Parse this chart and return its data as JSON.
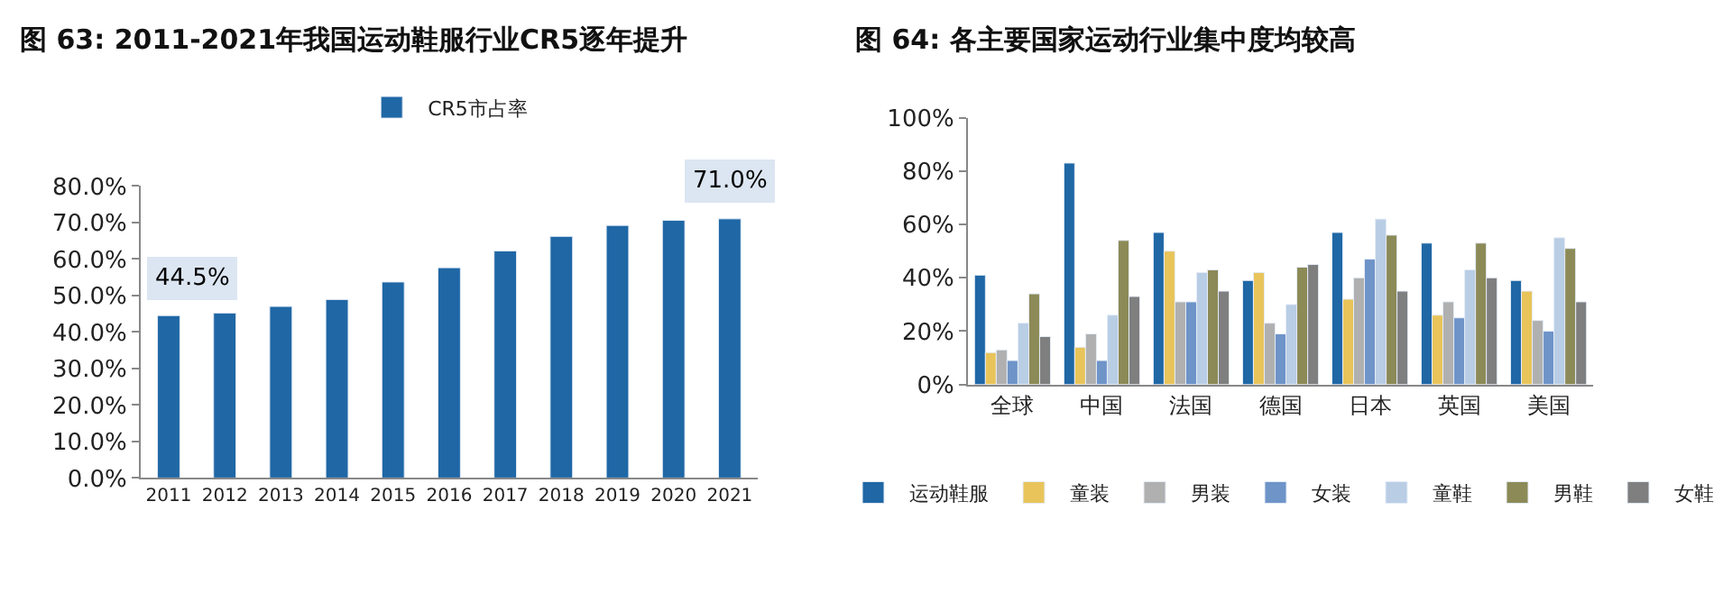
{
  "chart_data": [
    {
      "type": "bar",
      "title": "图 63: 2011-2021年我国运动鞋服行业CR5逐年提升",
      "categories": [
        "2011",
        "2012",
        "2013",
        "2014",
        "2015",
        "2016",
        "2017",
        "2018",
        "2019",
        "2020",
        "2021"
      ],
      "series": [
        {
          "name": "CR5市占率",
          "color": "#1f67a5",
          "values": [
            44.5,
            45.2,
            47.0,
            48.9,
            53.7,
            57.6,
            62.2,
            66.2,
            69.2,
            70.6,
            71.0
          ],
          "value_labels": [
            "44.5%",
            null,
            null,
            null,
            null,
            null,
            null,
            null,
            null,
            null,
            "71.0%"
          ]
        }
      ],
      "ylim": [
        0,
        80
      ],
      "yticks": [
        {
          "value": 0,
          "label": "0.0%"
        },
        {
          "value": 10,
          "label": "10.0%"
        },
        {
          "value": 20,
          "label": "20.0%"
        },
        {
          "value": 30,
          "label": "30.0%"
        },
        {
          "value": 40,
          "label": "40.0%"
        },
        {
          "value": 50,
          "label": "50.0%"
        },
        {
          "value": 60,
          "label": "60.0%"
        },
        {
          "value": 70,
          "label": "70.0%"
        },
        {
          "value": 80,
          "label": "80.0%"
        }
      ],
      "legend": "top"
    },
    {
      "type": "bar",
      "title": "图 64: 各主要国家运动行业集中度均较高",
      "categories": [
        "全球",
        "中国",
        "法国",
        "德国",
        "日本",
        "英国",
        "美国"
      ],
      "series": [
        {
          "name": "运动鞋服",
          "color": "#1f67a5",
          "values": [
            41,
            83,
            57,
            39,
            57,
            53,
            39
          ]
        },
        {
          "name": "童装",
          "color": "#e8c45a",
          "values": [
            12,
            14,
            50,
            42,
            32,
            26,
            35
          ]
        },
        {
          "name": "男装",
          "color": "#b0b0b0",
          "values": [
            13,
            19,
            31,
            23,
            40,
            31,
            24
          ]
        },
        {
          "name": "女装",
          "color": "#6e94c8",
          "values": [
            9,
            9,
            31,
            19,
            47,
            25,
            20
          ]
        },
        {
          "name": "童鞋",
          "color": "#b9cde5",
          "values": [
            23,
            26,
            42,
            30,
            62,
            43,
            55
          ]
        },
        {
          "name": "男鞋",
          "color": "#8c8a57",
          "values": [
            34,
            54,
            43,
            44,
            56,
            53,
            51
          ]
        },
        {
          "name": "女鞋",
          "color": "#7f7f7f",
          "values": [
            18,
            33,
            35,
            45,
            35,
            40,
            31
          ]
        }
      ],
      "ylim": [
        0,
        100
      ],
      "yticks": [
        {
          "value": 0,
          "label": "0%"
        },
        {
          "value": 20,
          "label": "20%"
        },
        {
          "value": 40,
          "label": "40%"
        },
        {
          "value": 60,
          "label": "60%"
        },
        {
          "value": 80,
          "label": "80%"
        },
        {
          "value": 100,
          "label": "100%"
        }
      ],
      "legend": "bottom"
    }
  ]
}
